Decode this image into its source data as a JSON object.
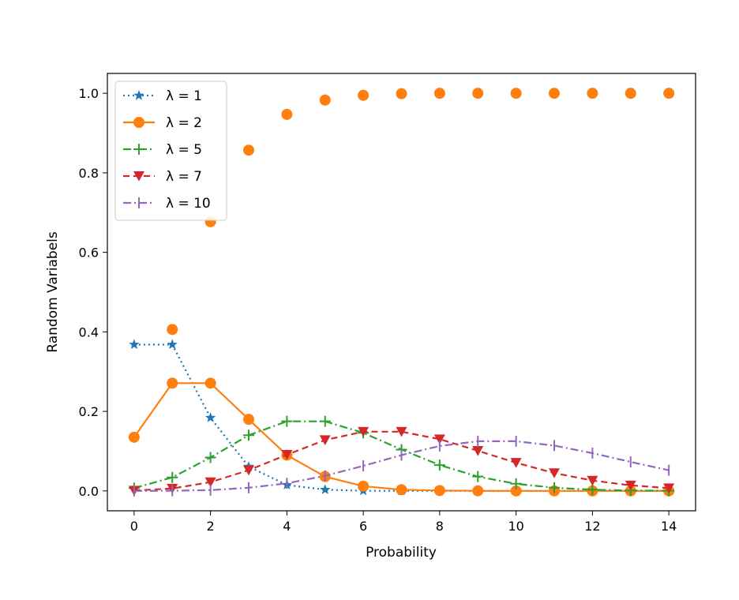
{
  "chart_data": {
    "type": "line",
    "title": "",
    "xlabel": "Probability",
    "ylabel": "Random Variabels",
    "xlim": [
      -0.7,
      14.7
    ],
    "ylim": [
      -0.05,
      1.05
    ],
    "xticks": [
      "0",
      "2",
      "4",
      "6",
      "8",
      "10",
      "12",
      "14"
    ],
    "yticks": [
      "0.0",
      "0.2",
      "0.4",
      "0.6",
      "0.8",
      "1.0"
    ],
    "legend_position": "top-left",
    "x": [
      0,
      1,
      2,
      3,
      4,
      5,
      6,
      7,
      8,
      9,
      10,
      11,
      12,
      13,
      14
    ],
    "series": [
      {
        "name": "λ = 1",
        "legend_label": "λ = 1",
        "color": "#1f77b4",
        "linestyle": "dotted",
        "marker": "star",
        "values": [
          0.368,
          0.368,
          0.184,
          0.061,
          0.015,
          0.003,
          0.0005,
          0.0001,
          0.0,
          0.0,
          0.0,
          0.0,
          0.0,
          0.0,
          0.0
        ]
      },
      {
        "name": "λ = 2",
        "legend_label": "λ = 2",
        "color": "#ff7f0e",
        "linestyle": "solid",
        "marker": "circle",
        "values": [
          0.135,
          0.271,
          0.271,
          0.18,
          0.09,
          0.036,
          0.012,
          0.003,
          0.001,
          0.0002,
          0.0,
          0.0,
          0.0,
          0.0,
          0.0
        ]
      },
      {
        "name": "λ = 5",
        "legend_label": "λ = 5",
        "color": "#2ca02c",
        "linestyle": "dashdot",
        "marker": "plus",
        "values": [
          0.007,
          0.034,
          0.084,
          0.14,
          0.175,
          0.175,
          0.146,
          0.104,
          0.065,
          0.036,
          0.018,
          0.008,
          0.003,
          0.001,
          0.0005
        ]
      },
      {
        "name": "λ = 7",
        "legend_label": "λ = 7",
        "color": "#d62728",
        "linestyle": "dashed",
        "marker": "triangle-down",
        "values": [
          0.001,
          0.006,
          0.022,
          0.052,
          0.091,
          0.128,
          0.149,
          0.149,
          0.13,
          0.101,
          0.071,
          0.045,
          0.026,
          0.014,
          0.007
        ]
      },
      {
        "name": "λ = 10",
        "legend_label": "λ = 10",
        "color": "#9467bd",
        "linestyle": "dashdot",
        "marker": "vline",
        "values": [
          0.0,
          0.0005,
          0.002,
          0.008,
          0.019,
          0.038,
          0.063,
          0.09,
          0.113,
          0.125,
          0.125,
          0.114,
          0.095,
          0.073,
          0.052
        ]
      },
      {
        "name": "",
        "color": "#ff7f0e",
        "linestyle": "none",
        "marker": "circle",
        "values": [
          null,
          0.406,
          0.677,
          0.857,
          0.947,
          0.983,
          0.995,
          0.999,
          1.0,
          1.0,
          1.0,
          1.0,
          1.0,
          1.0,
          1.0
        ]
      }
    ]
  }
}
